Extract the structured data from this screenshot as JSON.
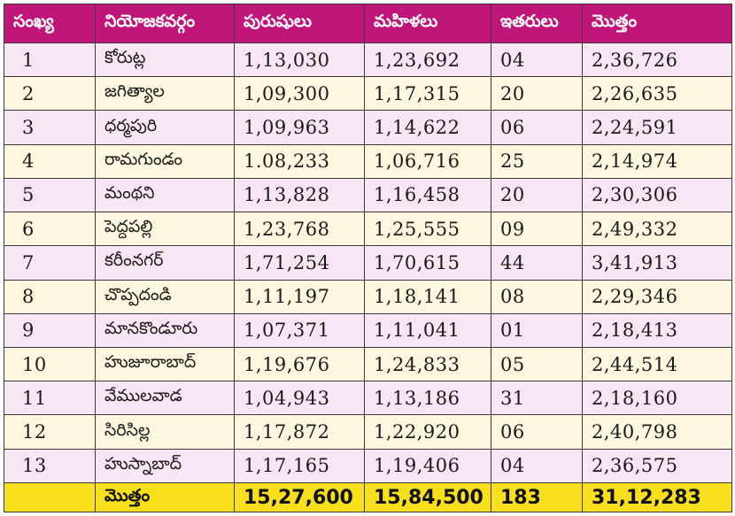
{
  "table": {
    "headers": [
      "సంఖ్య",
      "నియోజకవర్గం",
      "పురుషులు",
      "మహిళలు",
      "ఇతరులు",
      "మొత్తం"
    ],
    "rows": [
      {
        "no": "1",
        "name": "కోరుట్ల",
        "men": "1,13,030",
        "women": "1,23,692",
        "others": "04",
        "total": "2,36,726"
      },
      {
        "no": "2",
        "name": "జగిత్యాల",
        "men": "1,09,300",
        "women": "1,17,315",
        "others": "20",
        "total": "2,26,635"
      },
      {
        "no": "3",
        "name": "ధర్మపురి",
        "men": "1,09,963",
        "women": "1,14,622",
        "others": "06",
        "total": "2,24,591"
      },
      {
        "no": "4",
        "name": "రామగుండం",
        "men": "1.08,233",
        "women": "1,06,716",
        "others": "25",
        "total": "2,14,974"
      },
      {
        "no": "5",
        "name": "మంథని",
        "men": "1,13,828",
        "women": "1,16,458",
        "others": "20",
        "total": "2,30,306"
      },
      {
        "no": "6",
        "name": "పెద్దపల్లి",
        "men": "1,23,768",
        "women": "1,25,555",
        "others": "09",
        "total": "2,49,332"
      },
      {
        "no": "7",
        "name": "కరీంనగర్",
        "men": "1,71,254",
        "women": "1,70,615",
        "others": "44",
        "total": "3,41,913"
      },
      {
        "no": "8",
        "name": "చొప్పదండి",
        "men": "1,11,197",
        "women": "1,18,141",
        "others": "08",
        "total": "2,29,346"
      },
      {
        "no": "9",
        "name": "మానకొండూరు",
        "men": "1,07,371",
        "women": "1,11,041",
        "others": "01",
        "total": "2,18,413"
      },
      {
        "no": "10",
        "name": "హుజూరాబాద్",
        "men": "1,19,676",
        "women": "1,24,833",
        "others": "05",
        "total": "2,44,514"
      },
      {
        "no": "11",
        "name": "వేములవాడ",
        "men": "1,04,943",
        "women": "1,13,186",
        "others": "31",
        "total": "2,18,160"
      },
      {
        "no": "12",
        "name": "సిరిసిల్ల",
        "men": "1,17,872",
        "women": "1,22,920",
        "others": "06",
        "total": "2,40,798"
      },
      {
        "no": "13",
        "name": "హుస్నాబాద్",
        "men": "1,17,165",
        "women": "1,19,406",
        "others": "04",
        "total": "2,36,575"
      }
    ],
    "total": {
      "label": "మొత్తం",
      "men": "15,27,600",
      "women": "15,84,500",
      "others": "183",
      "total": "31,12,283"
    }
  }
}
